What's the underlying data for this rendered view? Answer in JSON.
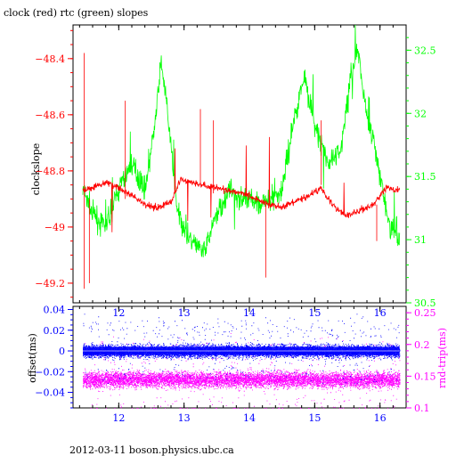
{
  "page": {
    "footer": "2012-03-11 boson.physics.ubc.ca"
  },
  "colors": {
    "clock": "#ff0000",
    "rtc": "#00ff00",
    "offset": "#0000ff",
    "roundtrip": "#ff00ff",
    "axis": "#000000"
  },
  "chart_data": [
    {
      "type": "line",
      "title": "clock (red) rtc (green) slopes",
      "xlabel": "",
      "ylabel": "clockslope",
      "y2label": "",
      "xlim": [
        11.3,
        16.4
      ],
      "ylim": [
        -49.27,
        -48.28
      ],
      "y2lim": [
        30.5,
        32.7
      ],
      "x_ticks": [
        12,
        13,
        14,
        15,
        16
      ],
      "y_ticks": [
        -48.4,
        -48.6,
        -48.8,
        -49,
        -49.2
      ],
      "y2_ticks": [
        32.5,
        32,
        31.5,
        31,
        30.5
      ],
      "y_tick_labels": [
        "−48.4",
        "−48.6",
        "−48.8",
        "−49",
        "−49.2"
      ],
      "y2_tick_labels": [
        "32.5",
        "32",
        "31.5",
        "31",
        "30.5"
      ],
      "series": [
        {
          "name": "clock",
          "axis": "left",
          "color": "#ff0000",
          "x": [
            11.45,
            11.6,
            11.8,
            12.0,
            12.2,
            12.4,
            12.6,
            12.8,
            12.95,
            13.1,
            13.3,
            13.5,
            13.7,
            13.9,
            14.1,
            14.3,
            14.5,
            14.7,
            14.9,
            15.1,
            15.3,
            15.5,
            15.7,
            15.9,
            16.1,
            16.3
          ],
          "values": [
            -48.87,
            -48.86,
            -48.84,
            -48.86,
            -48.89,
            -48.92,
            -48.93,
            -48.91,
            -48.83,
            -48.84,
            -48.85,
            -48.86,
            -48.87,
            -48.88,
            -48.9,
            -48.92,
            -48.93,
            -48.91,
            -48.89,
            -48.86,
            -48.93,
            -48.96,
            -48.94,
            -48.92,
            -48.86,
            -48.87
          ]
        },
        {
          "name": "rtc",
          "axis": "right",
          "color": "#00ff00",
          "x": [
            11.45,
            11.6,
            11.8,
            12.0,
            12.2,
            12.4,
            12.55,
            12.65,
            12.75,
            12.9,
            13.1,
            13.3,
            13.5,
            13.7,
            13.9,
            14.1,
            14.3,
            14.5,
            14.7,
            14.85,
            15.0,
            15.2,
            15.4,
            15.55,
            15.65,
            15.8,
            16.0,
            16.15,
            16.3
          ],
          "values": [
            31.4,
            31.2,
            31.1,
            31.4,
            31.6,
            31.4,
            31.9,
            32.4,
            32.0,
            31.2,
            31.0,
            30.9,
            31.2,
            31.4,
            31.3,
            31.3,
            31.3,
            31.4,
            32.0,
            32.3,
            31.9,
            31.6,
            31.7,
            32.3,
            32.5,
            32.0,
            31.5,
            31.1,
            31.0
          ]
        }
      ]
    },
    {
      "type": "scatter",
      "title": "",
      "xlabel": "",
      "ylabel": "offset(ms)",
      "y2label": "rnd-trip(ms)",
      "xlim": [
        11.3,
        16.4
      ],
      "ylim": [
        -0.055,
        0.043
      ],
      "y2lim": [
        0.1,
        0.26
      ],
      "x_ticks": [
        12,
        13,
        14,
        15,
        16
      ],
      "y_ticks": [
        0.04,
        0.02,
        0,
        -0.02,
        -0.04
      ],
      "y2_ticks": [
        0.25,
        0.2,
        0.15,
        0.1
      ],
      "y_tick_labels": [
        "0.04",
        "0.02",
        "0",
        "−0.02",
        "−0.04"
      ],
      "y2_tick_labels": [
        "0.25",
        "0.2",
        "0.15",
        "0.1"
      ],
      "series": [
        {
          "name": "offset",
          "axis": "left",
          "color": "#0000ff",
          "x_range": [
            11.45,
            16.3
          ],
          "center": 0.0,
          "spread": 0.006
        },
        {
          "name": "rnd-trip",
          "axis": "right",
          "color": "#ff00ff",
          "x_range": [
            11.45,
            16.3
          ],
          "center": 0.145,
          "spread": 0.012
        }
      ]
    }
  ]
}
